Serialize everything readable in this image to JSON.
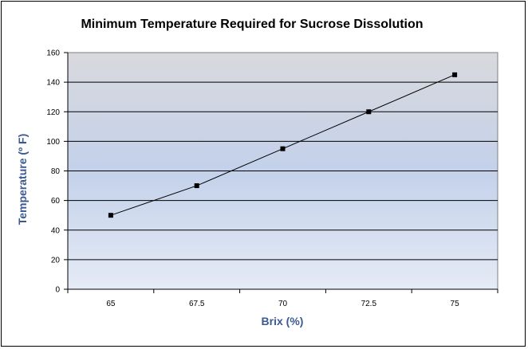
{
  "chart_data": {
    "type": "line",
    "title": "Minimum Temperature Required for Sucrose Dissolution",
    "xlabel": "Brix (%)",
    "ylabel": "Temperature (º F)",
    "categories": [
      "65",
      "67.5",
      "70",
      "72.5",
      "75"
    ],
    "series": [
      {
        "values": [
          50,
          70,
          95,
          120,
          145
        ]
      }
    ],
    "ylim": [
      0,
      160
    ],
    "yticks": [
      0,
      20,
      40,
      60,
      80,
      100,
      120,
      140,
      160
    ],
    "grid": true,
    "legend": "none",
    "colors": {
      "line": "#000000",
      "marker": "#000000",
      "plot_top": "#d9d9dd",
      "plot_mid": "#c3d1ea",
      "plot_bottom": "#e5ebf6",
      "axis_label": "#3b5a92"
    }
  }
}
